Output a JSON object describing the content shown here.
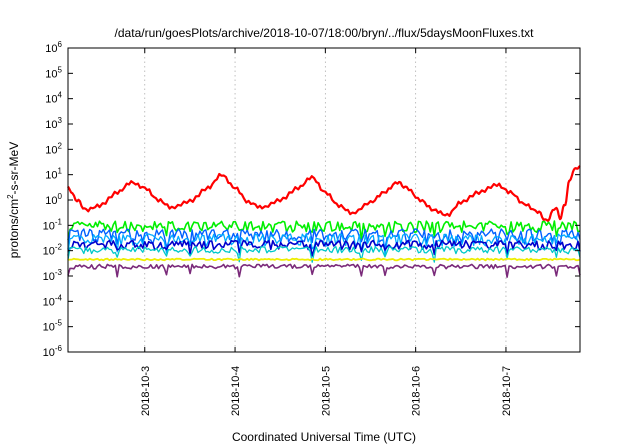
{
  "chart_data": {
    "type": "line",
    "title": "/data/run/goesPlots/archive/2018-10-07/18:00/bryn/../flux/5daysMoonFluxes.txt",
    "xlabel": "Coordinated Universal Time (UTC)",
    "ylabel": "protons/cm2-s-sr-MeV",
    "ylabel_parts": {
      "base": "protons/cm",
      "sup": "2",
      "rest": "-s-sr-MeV"
    },
    "xlim": [
      2.15,
      7.82
    ],
    "ylim_log10": [
      -6,
      6
    ],
    "yscale": "log",
    "grid": true,
    "x_ticks": [
      {
        "value": 3,
        "label": "2018-10-3"
      },
      {
        "value": 4,
        "label": "2018-10-4"
      },
      {
        "value": 5,
        "label": "2018-10-5"
      },
      {
        "value": 6,
        "label": "2018-10-6"
      },
      {
        "value": 7,
        "label": "2018-10-7"
      }
    ],
    "y_ticks": [
      {
        "exp": -6,
        "base": "10",
        "sup": "-6"
      },
      {
        "exp": -5,
        "base": "10",
        "sup": "-5"
      },
      {
        "exp": -4,
        "base": "10",
        "sup": "-4"
      },
      {
        "exp": -3,
        "base": "10",
        "sup": "-3"
      },
      {
        "exp": -2,
        "base": "10",
        "sup": "-2"
      },
      {
        "exp": -1,
        "base": "10",
        "sup": "-1"
      },
      {
        "exp": 0,
        "base": "10",
        "sup": "0"
      },
      {
        "exp": 1,
        "base": "10",
        "sup": "1"
      },
      {
        "exp": 2,
        "base": "10",
        "sup": "2"
      },
      {
        "exp": 3,
        "base": "10",
        "sup": "3"
      },
      {
        "exp": 4,
        "base": "10",
        "sup": "4"
      },
      {
        "exp": 5,
        "base": "10",
        "sup": "5"
      },
      {
        "exp": 6,
        "base": "10",
        "sup": "6"
      }
    ],
    "series": [
      {
        "color": "#ff0000",
        "width": 2.2,
        "x": [
          2.15,
          2.25,
          2.35,
          2.5,
          2.7,
          2.85,
          3.0,
          3.15,
          3.3,
          3.5,
          3.7,
          3.85,
          4.0,
          4.15,
          4.3,
          4.5,
          4.7,
          4.85,
          5.0,
          5.15,
          5.3,
          5.5,
          5.65,
          5.8,
          5.9,
          6.05,
          6.2,
          6.35,
          6.5,
          6.7,
          6.9,
          7.05,
          7.2,
          7.35,
          7.45,
          7.55,
          7.6,
          7.65,
          7.7,
          7.75,
          7.82
        ],
        "y": [
          3,
          1,
          0.4,
          0.6,
          2,
          5,
          3,
          1,
          0.5,
          0.9,
          3,
          10,
          3,
          0.8,
          0.5,
          1,
          3,
          8,
          2,
          0.6,
          0.3,
          0.8,
          2,
          5,
          3,
          1,
          0.4,
          0.25,
          0.8,
          2,
          4,
          2,
          0.7,
          0.35,
          0.15,
          0.5,
          0.2,
          0.6,
          5,
          15,
          22
        ]
      },
      {
        "color": "#00ee00",
        "width": 1.6,
        "x": [
          2.15,
          7.82
        ],
        "y": [
          0.1,
          0.1
        ],
        "noise": 0.12,
        "seed": 1
      },
      {
        "color": "#0060ff",
        "width": 1.4,
        "x": [
          2.15,
          7.82
        ],
        "y": [
          0.045,
          0.045
        ],
        "noise": 0.15,
        "seed": 2
      },
      {
        "color": "#00aaff",
        "width": 1.3,
        "x": [
          2.15,
          7.82
        ],
        "y": [
          0.03,
          0.03
        ],
        "noise": 0.13,
        "seed": 3
      },
      {
        "color": "#0000cc",
        "width": 1.6,
        "x": [
          2.15,
          7.82
        ],
        "y": [
          0.018,
          0.018
        ],
        "noise": 0.1,
        "seed": 4
      },
      {
        "color": "#00c8c8",
        "width": 1.3,
        "x": [
          2.15,
          7.82
        ],
        "y": [
          0.011,
          0.011
        ],
        "noise": 0.08,
        "seed": 5
      },
      {
        "color": "#eeee00",
        "width": 1.8,
        "x": [
          2.15,
          7.82
        ],
        "y": [
          0.0045,
          0.0045
        ],
        "noise": 0.02,
        "seed": 6
      },
      {
        "color": "#7a2a7a",
        "width": 1.6,
        "x": [
          2.15,
          7.82
        ],
        "y": [
          0.0024,
          0.0024
        ],
        "noise": 0.05,
        "seed": 7
      }
    ]
  }
}
